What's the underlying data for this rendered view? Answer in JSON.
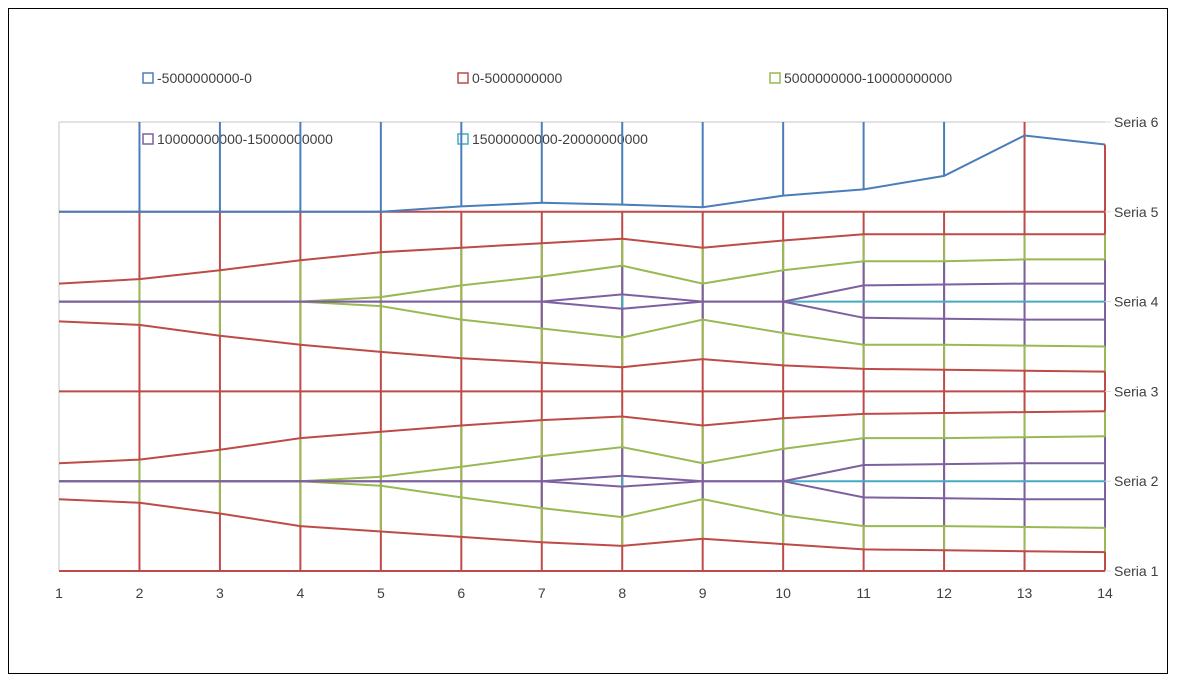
{
  "chart_data": {
    "type": "surface-contour",
    "title": "",
    "xlabel": "",
    "ylabel": "",
    "x_categories": [
      "1",
      "2",
      "3",
      "4",
      "5",
      "6",
      "7",
      "8",
      "9",
      "10",
      "11",
      "12",
      "13",
      "14"
    ],
    "series_names": [
      "Seria 1",
      "Seria 2",
      "Seria 3",
      "Seria 4",
      "Seria 5",
      "Seria 6"
    ],
    "legend_position": "top",
    "legend": [
      {
        "label": "-5000000000-0",
        "color": "#4a7ebb"
      },
      {
        "label": "0-5000000000",
        "color": "#be4b48"
      },
      {
        "label": "5000000000-10000000000",
        "color": "#98b954"
      },
      {
        "label": "10000000000-15000000000",
        "color": "#7d60a0"
      },
      {
        "label": "15000000000-20000000000",
        "color": "#46aac5"
      }
    ],
    "band_boundaries": [
      {
        "band": "-5000000000-0",
        "color": "#4a7ebb",
        "values": [
          5.0,
          5.0,
          5.0,
          5.0,
          5.0,
          5.06,
          5.1,
          5.08,
          5.05,
          5.18,
          5.25,
          5.4,
          5.85,
          5.75
        ]
      },
      {
        "band": "0-5000000000",
        "color": "#be4b48",
        "values": [
          4.2,
          4.25,
          4.35,
          4.46,
          4.55,
          4.6,
          4.65,
          4.7,
          4.6,
          4.68,
          4.75,
          4.75,
          4.75,
          4.75
        ]
      },
      {
        "band": "0-5000000000",
        "color": "#be4b48",
        "values": [
          3.78,
          3.74,
          3.62,
          3.52,
          3.44,
          3.37,
          3.32,
          3.27,
          3.36,
          3.29,
          3.25,
          3.24,
          3.23,
          3.22
        ]
      },
      {
        "band": "5000000000-10000000000",
        "color": "#98b954",
        "values": [
          4.0,
          4.0,
          4.0,
          4.0,
          4.05,
          4.18,
          4.28,
          4.4,
          4.2,
          4.35,
          4.45,
          4.45,
          4.47,
          4.47
        ]
      },
      {
        "band": "5000000000-10000000000",
        "color": "#98b954",
        "values": [
          4.0,
          4.0,
          4.0,
          4.0,
          3.95,
          3.8,
          3.7,
          3.6,
          3.8,
          3.65,
          3.52,
          3.52,
          3.51,
          3.5
        ]
      },
      {
        "band": "0-5000000000",
        "color": "#be4b48",
        "values": [
          2.2,
          2.24,
          2.35,
          2.48,
          2.55,
          2.62,
          2.68,
          2.72,
          2.62,
          2.7,
          2.75,
          2.76,
          2.77,
          2.78
        ]
      },
      {
        "band": "0-5000000000",
        "color": "#be4b48",
        "values": [
          1.8,
          1.76,
          1.64,
          1.5,
          1.44,
          1.38,
          1.32,
          1.28,
          1.36,
          1.3,
          1.24,
          1.23,
          1.22,
          1.21
        ]
      },
      {
        "band": "5000000000-10000000000",
        "color": "#98b954",
        "values": [
          2.0,
          2.0,
          2.0,
          2.0,
          2.05,
          2.16,
          2.28,
          2.38,
          2.2,
          2.36,
          2.48,
          2.48,
          2.49,
          2.5
        ]
      },
      {
        "band": "5000000000-10000000000",
        "color": "#98b954",
        "values": [
          2.0,
          2.0,
          2.0,
          2.0,
          1.95,
          1.82,
          1.7,
          1.6,
          1.8,
          1.62,
          1.5,
          1.5,
          1.49,
          1.48
        ]
      },
      {
        "band": "10000000000-15000000000",
        "color": "#7d60a0",
        "values": [
          4.0,
          4.0,
          4.0,
          4.0,
          4.0,
          4.0,
          4.0,
          4.08,
          4.0,
          4.0,
          4.18,
          4.19,
          4.2,
          4.2
        ]
      },
      {
        "band": "10000000000-15000000000",
        "color": "#7d60a0",
        "values": [
          4.0,
          4.0,
          4.0,
          4.0,
          4.0,
          4.0,
          4.0,
          3.92,
          4.0,
          4.0,
          3.82,
          3.81,
          3.8,
          3.8
        ]
      },
      {
        "band": "10000000000-15000000000",
        "color": "#7d60a0",
        "values": [
          2.0,
          2.0,
          2.0,
          2.0,
          2.0,
          2.0,
          2.0,
          2.06,
          2.0,
          2.0,
          2.18,
          2.19,
          2.2,
          2.2
        ]
      },
      {
        "band": "10000000000-15000000000",
        "color": "#7d60a0",
        "values": [
          2.0,
          2.0,
          2.0,
          2.0,
          2.0,
          2.0,
          2.0,
          1.94,
          2.0,
          2.0,
          1.82,
          1.81,
          1.8,
          1.8
        ]
      }
    ],
    "flat_lines": [
      {
        "band": "0-5000000000",
        "color": "#be4b48",
        "level": 1
      },
      {
        "band": "0-5000000000",
        "color": "#be4b48",
        "level": 3
      },
      {
        "band": "0-5000000000",
        "color": "#be4b48",
        "level": 5
      },
      {
        "band": "15000000000-20000000000",
        "color": "#46aac5",
        "level": 4,
        "from_x": 10
      },
      {
        "band": "15000000000-20000000000",
        "color": "#46aac5",
        "level": 2,
        "from_x": 10
      }
    ],
    "vertical_lines": [
      {
        "x": "2",
        "segments": [
          [
            "#be4b48",
            1,
            5
          ],
          [
            "#98b954",
            1.76,
            2.24
          ],
          [
            "#98b954",
            3.74,
            4.25
          ],
          [
            "#4a7ebb",
            5,
            6
          ]
        ]
      },
      {
        "x": "3",
        "segments": [
          [
            "#be4b48",
            1,
            5
          ],
          [
            "#98b954",
            1.64,
            2.35
          ],
          [
            "#98b954",
            3.62,
            4.35
          ],
          [
            "#4a7ebb",
            5,
            6
          ]
        ]
      },
      {
        "x": "4",
        "segments": [
          [
            "#be4b48",
            1,
            5
          ],
          [
            "#98b954",
            1.5,
            2.48
          ],
          [
            "#98b954",
            3.52,
            4.46
          ],
          [
            "#4a7ebb",
            5,
            6
          ]
        ]
      },
      {
        "x": "5",
        "segments": [
          [
            "#be4b48",
            1,
            5
          ],
          [
            "#98b954",
            1.44,
            2.55
          ],
          [
            "#98b954",
            3.44,
            4.55
          ],
          [
            "#4a7ebb",
            5,
            6
          ]
        ]
      },
      {
        "x": "6",
        "segments": [
          [
            "#be4b48",
            1,
            5
          ],
          [
            "#98b954",
            1.38,
            2.62
          ],
          [
            "#98b954",
            3.37,
            4.6
          ],
          [
            "#4a7ebb",
            5.06,
            6
          ]
        ]
      },
      {
        "x": "7",
        "segments": [
          [
            "#be4b48",
            1,
            5
          ],
          [
            "#98b954",
            1.32,
            2.68
          ],
          [
            "#98b954",
            3.32,
            4.65
          ],
          [
            "#7d60a0",
            1.7,
            2.28
          ],
          [
            "#7d60a0",
            3.7,
            4.28
          ],
          [
            "#4a7ebb",
            5.1,
            6
          ]
        ]
      },
      {
        "x": "8",
        "segments": [
          [
            "#be4b48",
            1,
            5
          ],
          [
            "#98b954",
            1.28,
            2.72
          ],
          [
            "#98b954",
            3.27,
            4.7
          ],
          [
            "#7d60a0",
            1.6,
            2.38
          ],
          [
            "#7d60a0",
            3.6,
            4.4
          ],
          [
            "#46aac5",
            1.94,
            2.06
          ],
          [
            "#46aac5",
            3.92,
            4.08
          ],
          [
            "#4a7ebb",
            5.08,
            6
          ]
        ]
      },
      {
        "x": "9",
        "segments": [
          [
            "#be4b48",
            1,
            5
          ],
          [
            "#98b954",
            1.36,
            2.62
          ],
          [
            "#98b954",
            3.36,
            4.6
          ],
          [
            "#7d60a0",
            1.8,
            2.2
          ],
          [
            "#7d60a0",
            3.8,
            4.2
          ],
          [
            "#4a7ebb",
            5.05,
            6
          ]
        ]
      },
      {
        "x": "10",
        "segments": [
          [
            "#be4b48",
            1,
            5
          ],
          [
            "#98b954",
            1.3,
            2.7
          ],
          [
            "#98b954",
            3.29,
            4.68
          ],
          [
            "#7d60a0",
            1.62,
            2.36
          ],
          [
            "#7d60a0",
            3.65,
            4.35
          ],
          [
            "#4a7ebb",
            5.18,
            6
          ]
        ]
      },
      {
        "x": "11",
        "segments": [
          [
            "#be4b48",
            1,
            5
          ],
          [
            "#98b954",
            1.24,
            2.75
          ],
          [
            "#98b954",
            3.25,
            4.75
          ],
          [
            "#7d60a0",
            1.5,
            2.48
          ],
          [
            "#7d60a0",
            3.52,
            4.45
          ],
          [
            "#4a7ebb",
            5.25,
            6
          ]
        ]
      },
      {
        "x": "12",
        "segments": [
          [
            "#be4b48",
            1,
            5
          ],
          [
            "#98b954",
            1.23,
            2.76
          ],
          [
            "#98b954",
            3.24,
            4.75
          ],
          [
            "#7d60a0",
            1.5,
            2.48
          ],
          [
            "#7d60a0",
            3.52,
            4.45
          ],
          [
            "#4a7ebb",
            5.4,
            6
          ]
        ]
      },
      {
        "x": "13",
        "segments": [
          [
            "#be4b48",
            1,
            6
          ],
          [
            "#98b954",
            1.22,
            2.77
          ],
          [
            "#98b954",
            3.23,
            4.75
          ],
          [
            "#7d60a0",
            1.49,
            2.49
          ],
          [
            "#7d60a0",
            3.51,
            4.47
          ]
        ]
      },
      {
        "x": "14",
        "segments": [
          [
            "#be4b48",
            1,
            5.75
          ],
          [
            "#98b954",
            1.21,
            2.78
          ],
          [
            "#98b954",
            3.22,
            4.75
          ],
          [
            "#7d60a0",
            1.48,
            2.5
          ],
          [
            "#7d60a0",
            3.5,
            4.47
          ]
        ]
      }
    ],
    "ylim": [
      1,
      6
    ],
    "grid": true
  }
}
